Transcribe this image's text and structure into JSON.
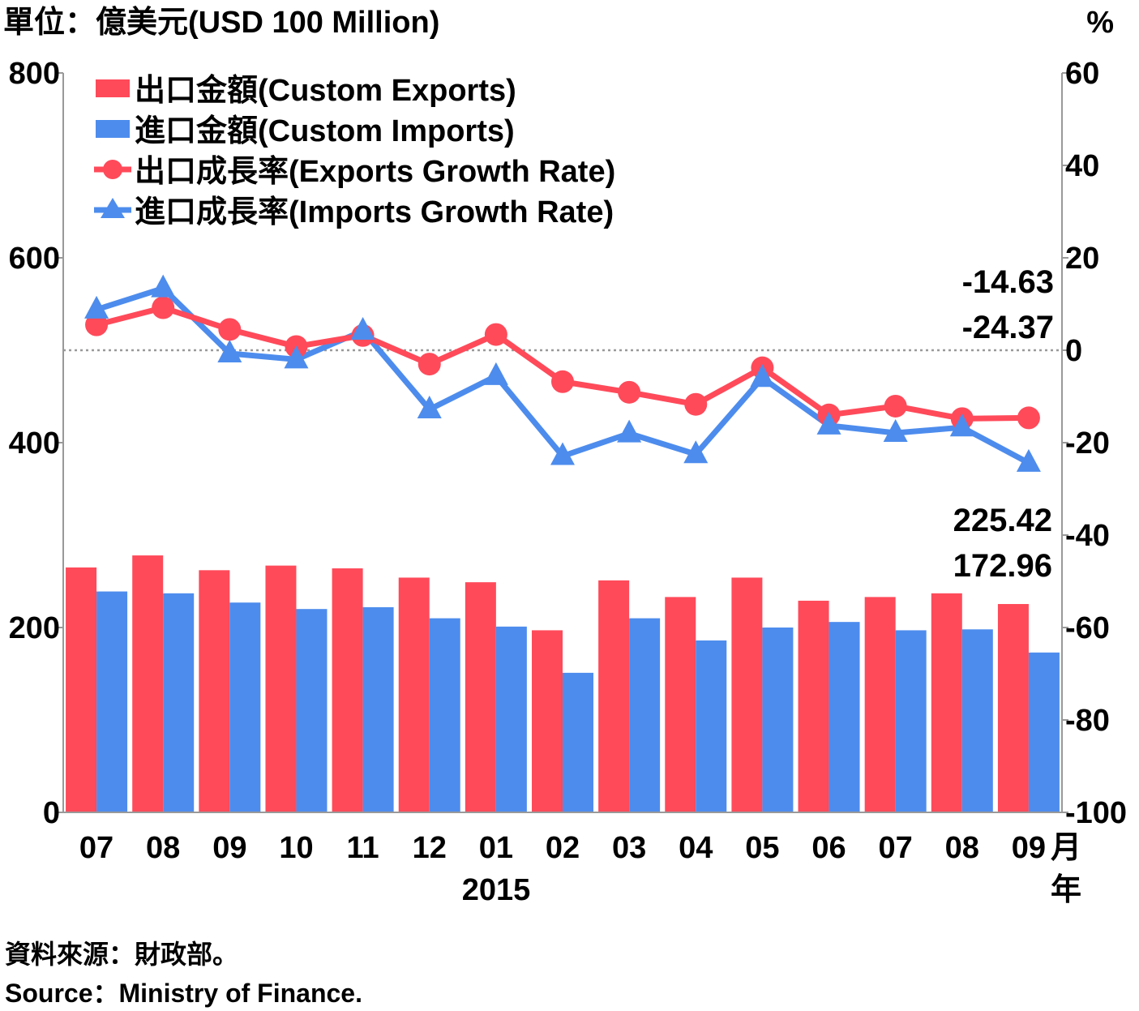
{
  "colors": {
    "exports": "#ff4a5a",
    "imports": "#4d8ced",
    "axis": "#999999",
    "zero_line": "#999999"
  },
  "chart_data": {
    "type": "bar",
    "title": "",
    "y_left_label": "單位：億美元(USD 100 Million)",
    "y_right_label": "%",
    "ylim_left": [
      0,
      800
    ],
    "yticks_left": [
      "0",
      "200",
      "400",
      "600",
      "800"
    ],
    "ylim_right": [
      -100,
      60
    ],
    "yticks_right": [
      "-100",
      "-80",
      "-60",
      "-40",
      "-20",
      "0",
      "20",
      "40",
      "60"
    ],
    "categories": [
      "07",
      "08",
      "09",
      "10",
      "11",
      "12",
      "01",
      "02",
      "03",
      "04",
      "05",
      "06",
      "07",
      "08",
      "09"
    ],
    "month_unit": "月",
    "year_label": "2015",
    "year_unit": "年",
    "legend_position": "top-left",
    "series": [
      {
        "name": "出口金額(Custom Exports)",
        "kind": "bar",
        "axis": "left",
        "values": [
          265,
          278,
          262,
          267,
          264,
          254,
          249,
          197,
          251,
          233,
          254,
          229,
          233,
          237,
          225.42
        ]
      },
      {
        "name": "進口金額(Custom Imports)",
        "kind": "bar",
        "axis": "left",
        "values": [
          239,
          237,
          227,
          220,
          222,
          210,
          201,
          151,
          210,
          186,
          200,
          206,
          197,
          198,
          172.96
        ]
      },
      {
        "name": "出口成長率(Exports Growth Rate)",
        "kind": "line",
        "marker": "circle",
        "axis": "right",
        "values": [
          5.5,
          9.2,
          4.5,
          0.8,
          3.2,
          -3.0,
          3.4,
          -6.8,
          -9.1,
          -11.7,
          -3.8,
          -14.0,
          -12.1,
          -14.8,
          -14.63
        ]
      },
      {
        "name": "進口成長率(Imports Growth Rate)",
        "kind": "line",
        "marker": "triangle",
        "axis": "right",
        "values": [
          8.8,
          13.4,
          -0.7,
          -2.0,
          4.2,
          -12.8,
          -5.6,
          -22.9,
          -18.0,
          -22.5,
          -6.0,
          -16.3,
          -17.9,
          -16.7,
          -24.37
        ]
      }
    ],
    "annotations": {
      "export_rate_last": "-14.63",
      "import_rate_last": "-24.37",
      "export_value_last": "225.42",
      "import_value_last": "172.96"
    }
  },
  "footer": {
    "source_zh": "資料來源：財政部。",
    "source_en": "Source：Ministry of Finance."
  }
}
